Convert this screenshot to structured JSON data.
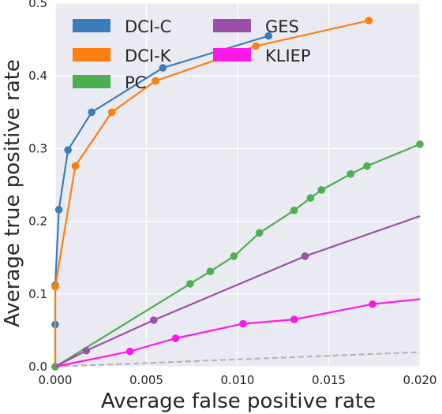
{
  "chart_data": {
    "type": "line",
    "xlabel": "Average false positive rate",
    "ylabel": "Average true positive rate",
    "xlim": [
      0,
      0.02
    ],
    "ylim": [
      0,
      0.5
    ],
    "xticks": [
      0.0,
      0.005,
      0.01,
      0.015,
      0.02
    ],
    "xtick_labels": [
      "0.000",
      "0.005",
      "0.010",
      "0.015",
      "0.020"
    ],
    "yticks": [
      0.0,
      0.1,
      0.2,
      0.3,
      0.4,
      0.5
    ],
    "ytick_labels": [
      "0.0",
      "0.1",
      "0.2",
      "0.3",
      "0.4",
      "0.5"
    ],
    "grid": true,
    "legend_position": "top-left",
    "series": [
      {
        "name": "DCI-C",
        "color": "#3a7dba",
        "x": [
          0.0,
          0.0,
          0.0,
          0.0002,
          0.0007,
          0.002,
          0.0059,
          0.0117
        ],
        "y": [
          0.0,
          0.058,
          0.112,
          0.216,
          0.298,
          0.35,
          0.411,
          0.455
        ]
      },
      {
        "name": "DCI-K",
        "color": "#ff7f0e",
        "x": [
          0.0,
          0.0,
          0.0011,
          0.0031,
          0.0055,
          0.011,
          0.0172
        ],
        "y": [
          0.0,
          0.11,
          0.276,
          0.35,
          0.393,
          0.441,
          0.476
        ]
      },
      {
        "name": "PC",
        "color": "#4caf50",
        "x": [
          0.0,
          0.0074,
          0.0085,
          0.0098,
          0.0112,
          0.0131,
          0.014,
          0.0146,
          0.0162,
          0.0171,
          0.02
        ],
        "y": [
          0.0,
          0.114,
          0.131,
          0.152,
          0.184,
          0.215,
          0.232,
          0.243,
          0.265,
          0.276,
          0.306
        ]
      },
      {
        "name": "GES",
        "color": "#9b4fa8",
        "x": [
          0.0,
          0.0017,
          0.0054,
          0.0137,
          0.02
        ],
        "y": [
          0.0,
          0.022,
          0.064,
          0.152,
          0.207
        ],
        "marker_indices": [
          1,
          2,
          3
        ]
      },
      {
        "name": "KLIEP",
        "color": "#ff19e8",
        "x": [
          0.0,
          0.0041,
          0.0066,
          0.0103,
          0.0131,
          0.0174,
          0.02
        ],
        "y": [
          0.0,
          0.021,
          0.039,
          0.059,
          0.065,
          0.086,
          0.093
        ],
        "marker_indices": [
          1,
          2,
          3,
          4,
          5
        ]
      }
    ],
    "reference_line": {
      "style": "dashed",
      "color": "#b0b0b0",
      "x": [
        0.0,
        0.02
      ],
      "y": [
        0.0,
        0.02
      ]
    }
  }
}
